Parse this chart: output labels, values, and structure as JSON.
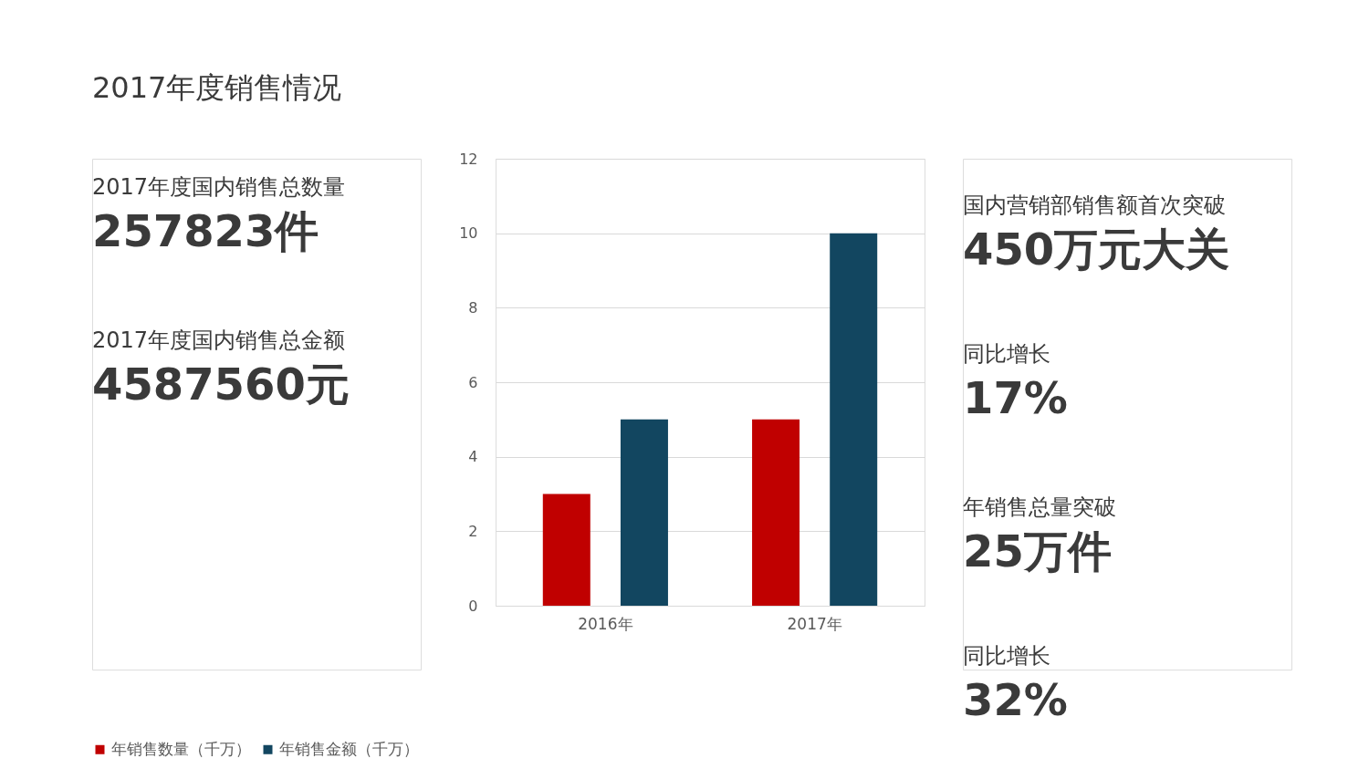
{
  "chart_data": [
    {
      "type": "other",
      "title": "2017年度销售情况",
      "annotations": [
        "2017年度国内销售总数量",
        "257823件",
        "2017年度国内销售总金额",
        "4587560元"
      ]
    },
    {
      "type": "bar",
      "categories": [
        "2016年",
        "2017年"
      ],
      "series": [
        {
          "name": "年销售数量（千万）",
          "color": "#c00000",
          "values": [
            3,
            5
          ]
        },
        {
          "name": "年销售金额（千万）",
          "color": "#124660",
          "values": [
            5,
            10
          ]
        }
      ],
      "ylim": [
        0,
        12
      ],
      "yticks": [
        0,
        2,
        4,
        6,
        8,
        10,
        12
      ],
      "grid": "y",
      "legend": "bottom"
    },
    {
      "type": "other",
      "annotations": [
        "国内营销部销售额首次突破",
        "450万元大关",
        "同比增长",
        "17%",
        "年销售总量突破",
        "25万件",
        "同比增长",
        "32%"
      ]
    }
  ]
}
